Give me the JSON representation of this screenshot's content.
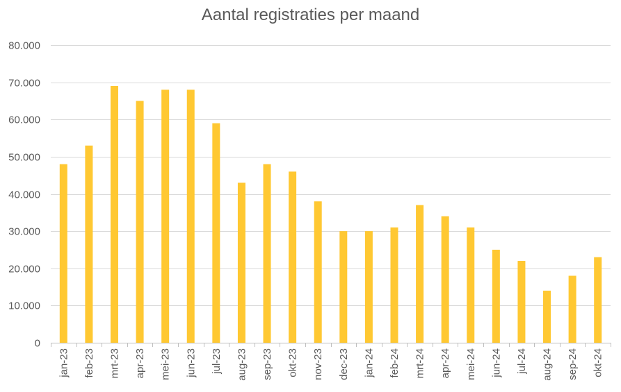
{
  "chart_data": {
    "type": "bar",
    "title": "Aantal registraties per maand",
    "xlabel": "",
    "ylabel": "",
    "ylim": [
      0,
      80000
    ],
    "yticks": [
      0,
      10000,
      20000,
      30000,
      40000,
      50000,
      60000,
      70000,
      80000
    ],
    "ytick_labels": [
      "0",
      "10.000",
      "20.000",
      "30.000",
      "40.000",
      "50.000",
      "60.000",
      "70.000",
      "80.000"
    ],
    "categories": [
      "jan-23",
      "feb-23",
      "mrt-23",
      "apr-23",
      "mei-23",
      "jun-23",
      "jul-23",
      "aug-23",
      "sep-23",
      "okt-23",
      "nov-23",
      "dec-23",
      "jan-24",
      "feb-24",
      "mrt-24",
      "apr-24",
      "mei-24",
      "jun-24",
      "jul-24",
      "aug-24",
      "sep-24",
      "okt-24"
    ],
    "values": [
      48000,
      53000,
      69000,
      65000,
      68000,
      68000,
      59000,
      43000,
      48000,
      46000,
      38000,
      30000,
      30000,
      31000,
      37000,
      34000,
      31000,
      25000,
      22000,
      14000,
      18000,
      23000
    ],
    "grid": true,
    "legend": "none",
    "colors": {
      "bar": "#FFC832",
      "grid": "#D9D9D9",
      "text": "#595959",
      "axis": "#BFBFBF"
    }
  }
}
